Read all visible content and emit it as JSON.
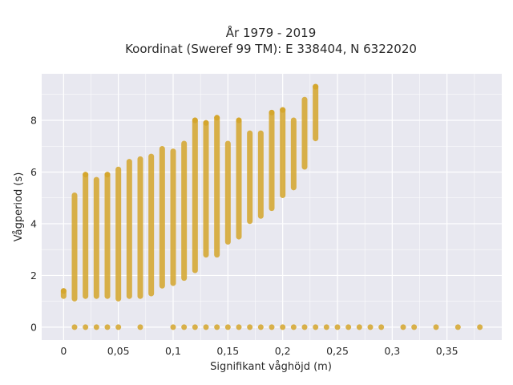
{
  "chart_data": {
    "type": "scatter",
    "title": "År 1979 - 2019",
    "subtitle": "Koordinat (Sweref 99 TM): E 338404, N 6322020",
    "xlabel": "Signifikant våghöjd (m)",
    "ylabel": "Vågperiod (s)",
    "xlim": [
      -0.02,
      0.4
    ],
    "ylim": [
      -0.5,
      9.8
    ],
    "x_ticks": [
      0,
      0.05,
      0.1,
      0.15,
      0.2,
      0.25,
      0.3,
      0.35
    ],
    "x_tick_labels": [
      "0",
      "0,05",
      "0,1",
      "0,15",
      "0,2",
      "0,25",
      "0,3",
      "0,35"
    ],
    "y_ticks": [
      0,
      2,
      4,
      6,
      8
    ],
    "y_tick_labels": [
      "0",
      "2",
      "4",
      "6",
      "8"
    ],
    "grid": true,
    "legend": "none",
    "colors": {
      "background": "#e8e8f0",
      "grid": "#ffffff",
      "marker": "#d4a52a",
      "text": "#2a2a2a"
    },
    "columns": [
      {
        "x": 0.0,
        "y_min": 1.2,
        "y_max": 1.4
      },
      {
        "x": 0.01,
        "y_min": 1.1,
        "y_max": 5.1
      },
      {
        "x": 0.02,
        "y_min": 1.2,
        "y_max": 5.9
      },
      {
        "x": 0.03,
        "y_min": 1.2,
        "y_max": 5.7
      },
      {
        "x": 0.04,
        "y_min": 1.2,
        "y_max": 5.9
      },
      {
        "x": 0.05,
        "y_min": 1.1,
        "y_max": 6.1
      },
      {
        "x": 0.06,
        "y_min": 1.2,
        "y_max": 6.4
      },
      {
        "x": 0.07,
        "y_min": 1.2,
        "y_max": 6.5
      },
      {
        "x": 0.08,
        "y_min": 1.3,
        "y_max": 6.6
      },
      {
        "x": 0.09,
        "y_min": 1.6,
        "y_max": 6.9
      },
      {
        "x": 0.1,
        "y_min": 1.7,
        "y_max": 6.8
      },
      {
        "x": 0.11,
        "y_min": 1.9,
        "y_max": 7.1
      },
      {
        "x": 0.12,
        "y_min": 2.2,
        "y_max": 8.0
      },
      {
        "x": 0.13,
        "y_min": 2.8,
        "y_max": 7.9
      },
      {
        "x": 0.14,
        "y_min": 2.8,
        "y_max": 8.1
      },
      {
        "x": 0.15,
        "y_min": 3.3,
        "y_max": 7.1
      },
      {
        "x": 0.16,
        "y_min": 3.5,
        "y_max": 8.0
      },
      {
        "x": 0.17,
        "y_min": 4.1,
        "y_max": 7.5
      },
      {
        "x": 0.18,
        "y_min": 4.3,
        "y_max": 7.5
      },
      {
        "x": 0.19,
        "y_min": 4.6,
        "y_max": 8.3
      },
      {
        "x": 0.2,
        "y_min": 5.1,
        "y_max": 8.4
      },
      {
        "x": 0.21,
        "y_min": 5.4,
        "y_max": 8.0
      },
      {
        "x": 0.22,
        "y_min": 6.2,
        "y_max": 8.8
      },
      {
        "x": 0.23,
        "y_min": 7.3,
        "y_max": 9.3
      }
    ],
    "points": [
      {
        "x": 0.0,
        "y": 1.4
      },
      {
        "x": 0.01,
        "y": 0
      },
      {
        "x": 0.02,
        "y": 0
      },
      {
        "x": 0.03,
        "y": 0
      },
      {
        "x": 0.04,
        "y": 0
      },
      {
        "x": 0.05,
        "y": 0
      },
      {
        "x": 0.07,
        "y": 0
      },
      {
        "x": 0.1,
        "y": 0
      },
      {
        "x": 0.11,
        "y": 0
      },
      {
        "x": 0.12,
        "y": 0
      },
      {
        "x": 0.13,
        "y": 0
      },
      {
        "x": 0.14,
        "y": 0
      },
      {
        "x": 0.15,
        "y": 0
      },
      {
        "x": 0.16,
        "y": 0
      },
      {
        "x": 0.17,
        "y": 0
      },
      {
        "x": 0.18,
        "y": 0
      },
      {
        "x": 0.19,
        "y": 0
      },
      {
        "x": 0.2,
        "y": 0
      },
      {
        "x": 0.21,
        "y": 0
      },
      {
        "x": 0.22,
        "y": 0
      },
      {
        "x": 0.23,
        "y": 0
      },
      {
        "x": 0.24,
        "y": 0
      },
      {
        "x": 0.25,
        "y": 0
      },
      {
        "x": 0.26,
        "y": 0
      },
      {
        "x": 0.27,
        "y": 0
      },
      {
        "x": 0.28,
        "y": 0
      },
      {
        "x": 0.29,
        "y": 0
      },
      {
        "x": 0.31,
        "y": 0
      },
      {
        "x": 0.32,
        "y": 0
      },
      {
        "x": 0.34,
        "y": 0
      },
      {
        "x": 0.36,
        "y": 0
      },
      {
        "x": 0.38,
        "y": 0
      },
      {
        "x": 0.02,
        "y": 5.9
      },
      {
        "x": 0.04,
        "y": 5.9
      },
      {
        "x": 0.12,
        "y": 8.0
      },
      {
        "x": 0.13,
        "y": 7.9
      },
      {
        "x": 0.14,
        "y": 8.1
      },
      {
        "x": 0.16,
        "y": 8.0
      },
      {
        "x": 0.19,
        "y": 8.3
      },
      {
        "x": 0.2,
        "y": 8.4
      },
      {
        "x": 0.23,
        "y": 9.3
      }
    ]
  }
}
